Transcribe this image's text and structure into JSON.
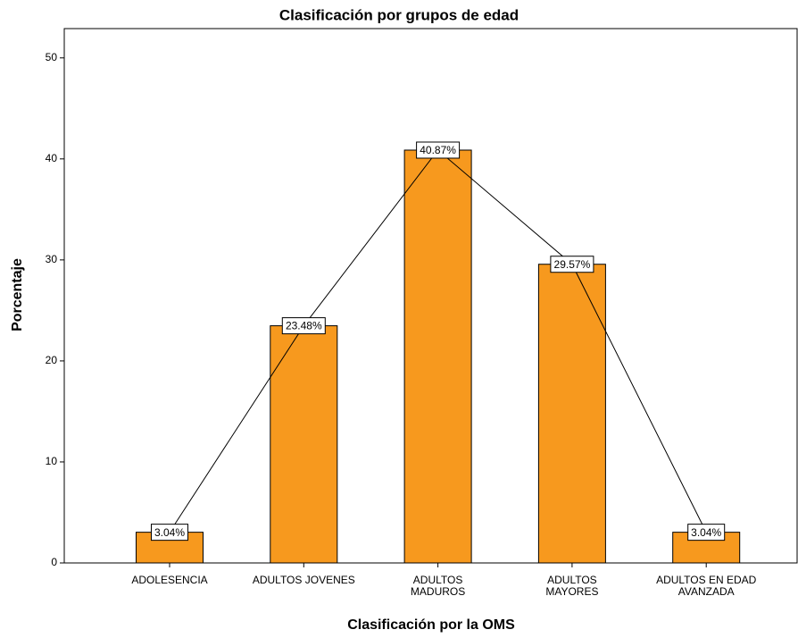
{
  "chart_data": {
    "type": "bar",
    "title": "Clasificación por grupos de edad",
    "x_label": "Clasificación por la OMS",
    "y_label": "Porcentaje",
    "categories": [
      "ADOLESENCIA",
      "ADULTOS JOVENES",
      "ADULTOS\nMADUROS",
      "ADULTOS\nMAYORES",
      "ADULTOS EN EDAD\nAVANZADA"
    ],
    "values": [
      3.04,
      23.48,
      40.87,
      29.57,
      3.04
    ],
    "value_labels": [
      "3.04%",
      "23.48%",
      "40.87%",
      "29.57%",
      "3.04%"
    ],
    "color": "#f7991e",
    "connect_line": true,
    "line_color": "#000000",
    "ylim": [
      0,
      52.9
    ],
    "yticks": [
      0,
      10,
      20,
      30,
      40,
      50
    ],
    "grid": false
  }
}
